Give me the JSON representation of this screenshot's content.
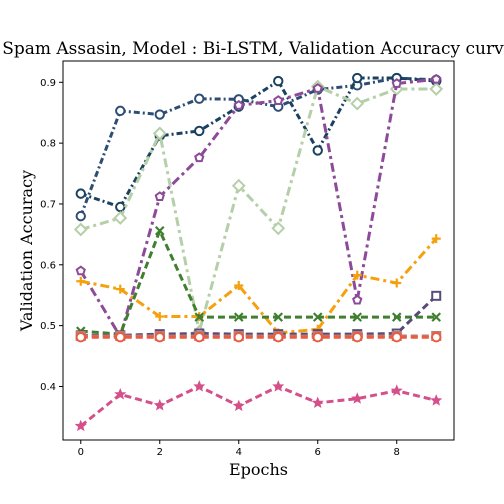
{
  "chart_data": {
    "type": "line",
    "title": "Spam Assasin, Model : Bi-LSTM, Validation Accuracy curve",
    "xlabel": "Epochs",
    "ylabel": "Validation Accuracy",
    "xlim": [
      -0.45,
      9.45
    ],
    "ylim": [
      0.312,
      0.935
    ],
    "xticks": [
      0,
      2,
      4,
      6,
      8
    ],
    "yticks": [
      0.4,
      0.5,
      0.6,
      0.7,
      0.8,
      0.9
    ],
    "grid": false,
    "x": [
      0,
      1,
      2,
      3,
      4,
      5,
      6,
      7,
      8,
      9
    ],
    "series": [
      {
        "values": [
          0.68,
          0.853,
          0.847,
          0.873,
          0.872,
          0.86,
          0.888,
          0.895,
          0.907,
          0.904
        ],
        "color": "#2e4d74",
        "dash": "6,3,2,3",
        "marker": "circle"
      },
      {
        "values": [
          0.717,
          0.695,
          0.812,
          0.82,
          0.86,
          0.902,
          0.788,
          0.907,
          0.907,
          0.902
        ],
        "color": "#1b4160",
        "dash": "6,3,2,3",
        "marker": "circle"
      },
      {
        "values": [
          0.658,
          0.677,
          0.816,
          0.49,
          0.73,
          0.66,
          0.893,
          0.865,
          0.889,
          0.889
        ],
        "color": "#b5cfa8",
        "dash": "9,4,3,4",
        "marker": "diamond"
      },
      {
        "values": [
          0.59,
          0.482,
          0.712,
          0.776,
          0.862,
          0.87,
          0.89,
          0.542,
          0.898,
          0.905
        ],
        "color": "#8c4a99",
        "dash": "9,4,3,4",
        "marker": "pentagon"
      },
      {
        "values": [
          0.573,
          0.56,
          0.515,
          0.515,
          0.566,
          0.488,
          0.494,
          0.583,
          0.57,
          0.643
        ],
        "color": "#f5a10d",
        "dash": "9,4,3,4",
        "marker": "plus"
      },
      {
        "values": [
          0.491,
          0.486,
          0.656,
          0.514,
          0.514,
          0.514,
          0.514,
          0.514,
          0.514,
          0.514
        ],
        "color": "#3f7f2f",
        "dash": "7,4",
        "marker": "x"
      },
      {
        "values": [
          0.484,
          0.484,
          0.486,
          0.487,
          0.486,
          0.486,
          0.486,
          0.486,
          0.487,
          0.549
        ],
        "color": "#5a4a7a",
        "dash": "7,4",
        "marker": "square"
      },
      {
        "values": [
          0.483,
          0.483,
          0.483,
          0.483,
          0.483,
          0.483,
          0.483,
          0.483,
          0.483,
          0.483
        ],
        "color": "#c07a6a",
        "dash": "7,4",
        "marker": "square"
      },
      {
        "values": [
          0.481,
          0.481,
          0.481,
          0.481,
          0.481,
          0.481,
          0.481,
          0.481,
          0.481,
          0.481
        ],
        "color": "#e85c41",
        "dash": "7,4",
        "marker": "circle"
      },
      {
        "values": [
          0.335,
          0.387,
          0.369,
          0.4,
          0.368,
          0.4,
          0.373,
          0.38,
          0.393,
          0.377
        ],
        "color": "#d4508a",
        "dash": "7,4",
        "marker": "star"
      }
    ]
  }
}
